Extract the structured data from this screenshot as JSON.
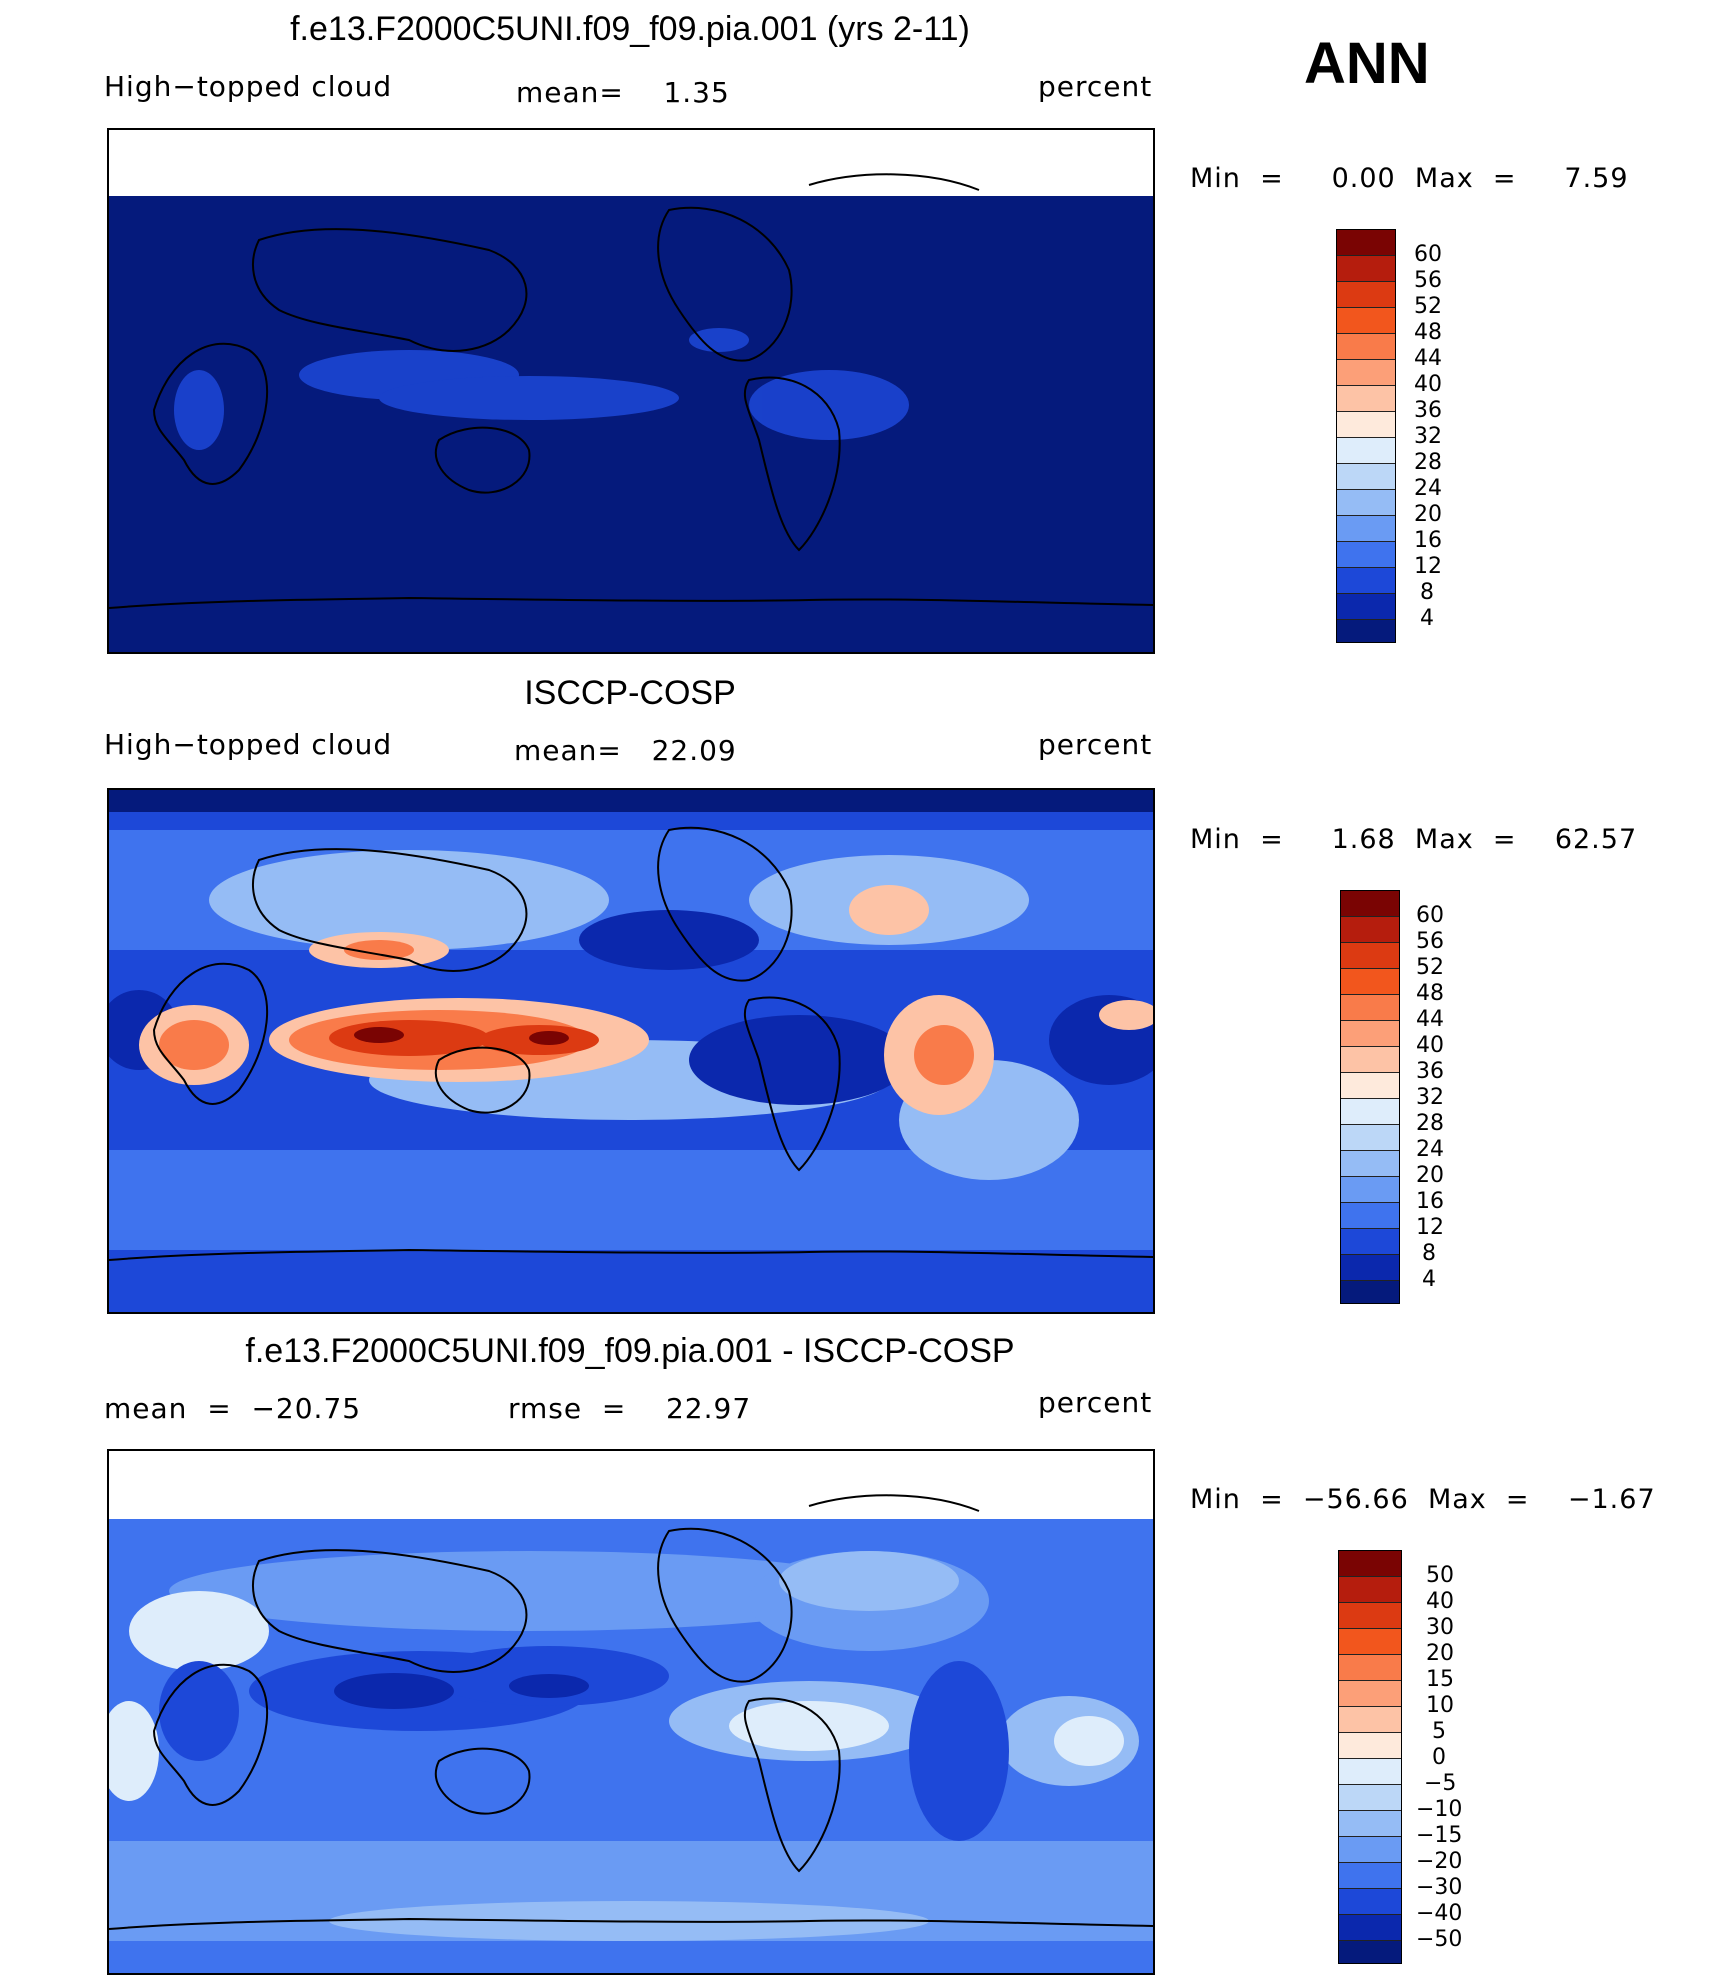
{
  "season": "ANN",
  "panels": [
    {
      "title": "f.e13.F2000C5UNI.f09_f09.pia.001 (yrs 2-11)",
      "left_label": "High−topped cloud",
      "center_label": "mean=    1.35",
      "right_label": "percent",
      "minmax": "Min  =     0.00  Max  =     7.59",
      "colorbar_labels": [
        "60",
        "56",
        "52",
        "48",
        "44",
        "40",
        "36",
        "32",
        "28",
        "24",
        "20",
        "16",
        "12",
        "8",
        "4"
      ],
      "colorbar_colors": [
        "#7a0403",
        "#b51d0d",
        "#dc3a12",
        "#f2561d",
        "#f97b4a",
        "#fc9f78",
        "#fdc3a6",
        "#feeadc",
        "#deedfb",
        "#bcd7f7",
        "#95bcf5",
        "#6a9bf3",
        "#3f73ee",
        "#1d48d8",
        "#0b28ad",
        "#051a7c"
      ],
      "background_color": "#051a7c"
    },
    {
      "title": "ISCCP-COSP",
      "left_label": "High−topped cloud",
      "center_label": "mean=   22.09",
      "right_label": "percent",
      "minmax": "Min  =     1.68  Max  =    62.57",
      "colorbar_labels": [
        "60",
        "56",
        "52",
        "48",
        "44",
        "40",
        "36",
        "32",
        "28",
        "24",
        "20",
        "16",
        "12",
        "8",
        "4"
      ],
      "colorbar_colors": [
        "#7a0403",
        "#b51d0d",
        "#dc3a12",
        "#f2561d",
        "#f97b4a",
        "#fc9f78",
        "#fdc3a6",
        "#feeadc",
        "#deedfb",
        "#bcd7f7",
        "#95bcf5",
        "#6a9bf3",
        "#3f73ee",
        "#1d48d8",
        "#0b28ad",
        "#051a7c"
      ],
      "background_color": "#1d48d8"
    },
    {
      "title": "f.e13.F2000C5UNI.f09_f09.pia.001 - ISCCP-COSP",
      "left_label": "mean  =  −20.75",
      "center_label": "rmse  =    22.97",
      "right_label": "percent",
      "minmax": "Min  =  −56.66  Max  =    −1.67",
      "colorbar_labels": [
        "50",
        "40",
        "30",
        "20",
        "15",
        "10",
        "5",
        "0",
        "−5",
        "−10",
        "−15",
        "−20",
        "−30",
        "−40",
        "−50"
      ],
      "colorbar_colors": [
        "#7a0403",
        "#b51d0d",
        "#dc3a12",
        "#f2561d",
        "#f97b4a",
        "#fc9f78",
        "#fdc3a6",
        "#feeadc",
        "#deedfb",
        "#bcd7f7",
        "#95bcf5",
        "#6a9bf3",
        "#3f73ee",
        "#1d48d8",
        "#0b28ad",
        "#051a7c"
      ],
      "background_color": "#3f73ee"
    }
  ]
}
